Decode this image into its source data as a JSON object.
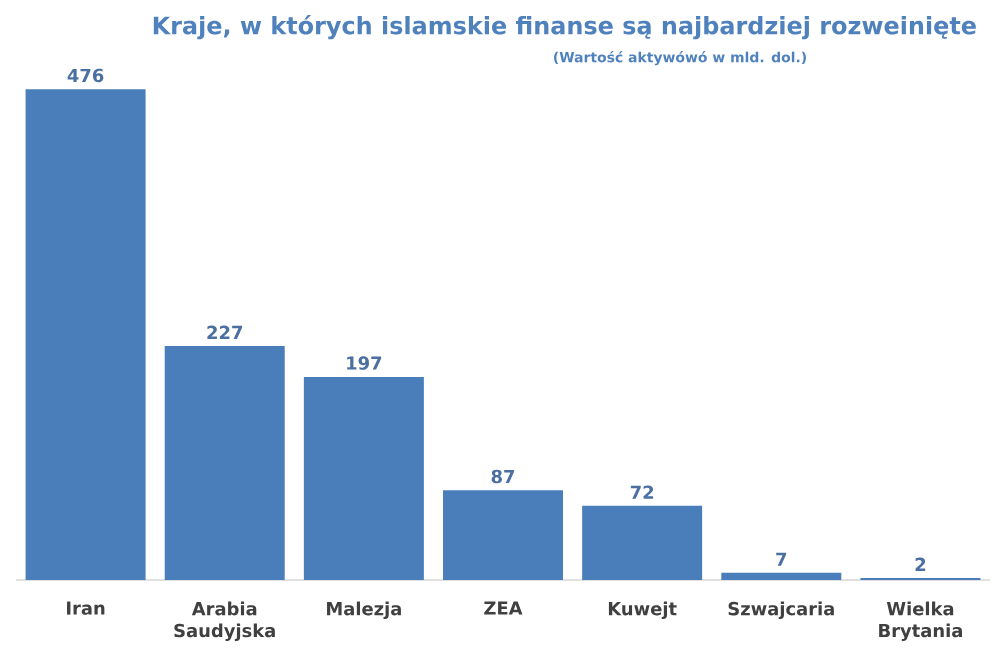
{
  "chart_data": {
    "type": "bar",
    "title": "Kraje, w których islamskie finanse są najbardziej rozweinięte",
    "subtitle": "(Wartość aktywówó w mld. dol.)",
    "categories": [
      "Iran",
      "Arabia Saudyjska",
      "Malezja",
      "ZEA",
      "Kuwejt",
      "Szwajcaria",
      "Wielka Brytania"
    ],
    "values": [
      476,
      227,
      197,
      87,
      72,
      7,
      2
    ],
    "color": "#4a7ebb",
    "data_labels": true
  }
}
